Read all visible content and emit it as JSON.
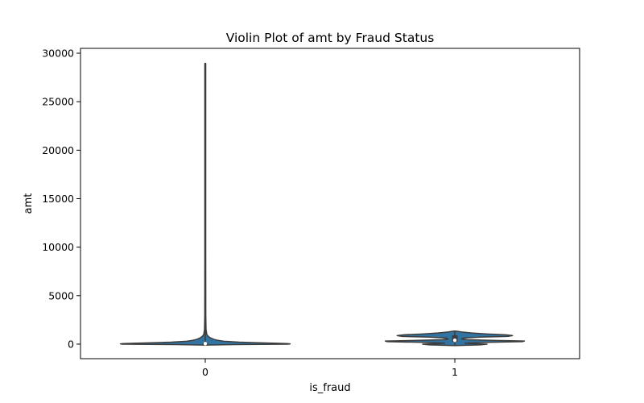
{
  "chart_data": {
    "type": "violin",
    "title": "Violin Plot of amt by Fraud Status",
    "xlabel": "is_fraud",
    "ylabel": "amt",
    "categories": [
      "0",
      "1"
    ],
    "ylim": [
      -1500,
      30500
    ],
    "yticks": [
      0,
      5000,
      10000,
      15000,
      20000,
      25000,
      30000
    ],
    "grid": false,
    "fill_color": "#3274a1",
    "edge_color": "#3d3d3d",
    "violins": [
      {
        "category": "0",
        "max": 28950,
        "min": -100,
        "q1": -30,
        "median": 50,
        "q3": 90,
        "profile": [
          [
            -100,
            0.01
          ],
          [
            -50,
            0.35
          ],
          [
            0,
            0.98
          ],
          [
            30,
            1.0
          ],
          [
            60,
            0.96
          ],
          [
            100,
            0.8
          ],
          [
            150,
            0.58
          ],
          [
            200,
            0.4
          ],
          [
            300,
            0.22
          ],
          [
            400,
            0.14
          ],
          [
            500,
            0.1
          ],
          [
            650,
            0.06
          ],
          [
            800,
            0.035
          ],
          [
            1000,
            0.018
          ],
          [
            1500,
            0.009
          ],
          [
            3000,
            0.006
          ],
          [
            10000,
            0.005
          ],
          [
            28950,
            0.005
          ]
        ]
      },
      {
        "category": "1",
        "max": 1350,
        "min": -150,
        "q1": 240,
        "median": 400,
        "q3": 900,
        "profile": [
          [
            -150,
            0.01
          ],
          [
            -80,
            0.3
          ],
          [
            0,
            0.38
          ],
          [
            40,
            0.22
          ],
          [
            100,
            0.12
          ],
          [
            180,
            0.38
          ],
          [
            260,
            0.8
          ],
          [
            320,
            0.82
          ],
          [
            380,
            0.48
          ],
          [
            450,
            0.15
          ],
          [
            520,
            0.08
          ],
          [
            620,
            0.1
          ],
          [
            720,
            0.3
          ],
          [
            800,
            0.62
          ],
          [
            880,
            0.68
          ],
          [
            960,
            0.6
          ],
          [
            1050,
            0.38
          ],
          [
            1150,
            0.2
          ],
          [
            1250,
            0.08
          ],
          [
            1350,
            0.01
          ]
        ]
      }
    ]
  }
}
